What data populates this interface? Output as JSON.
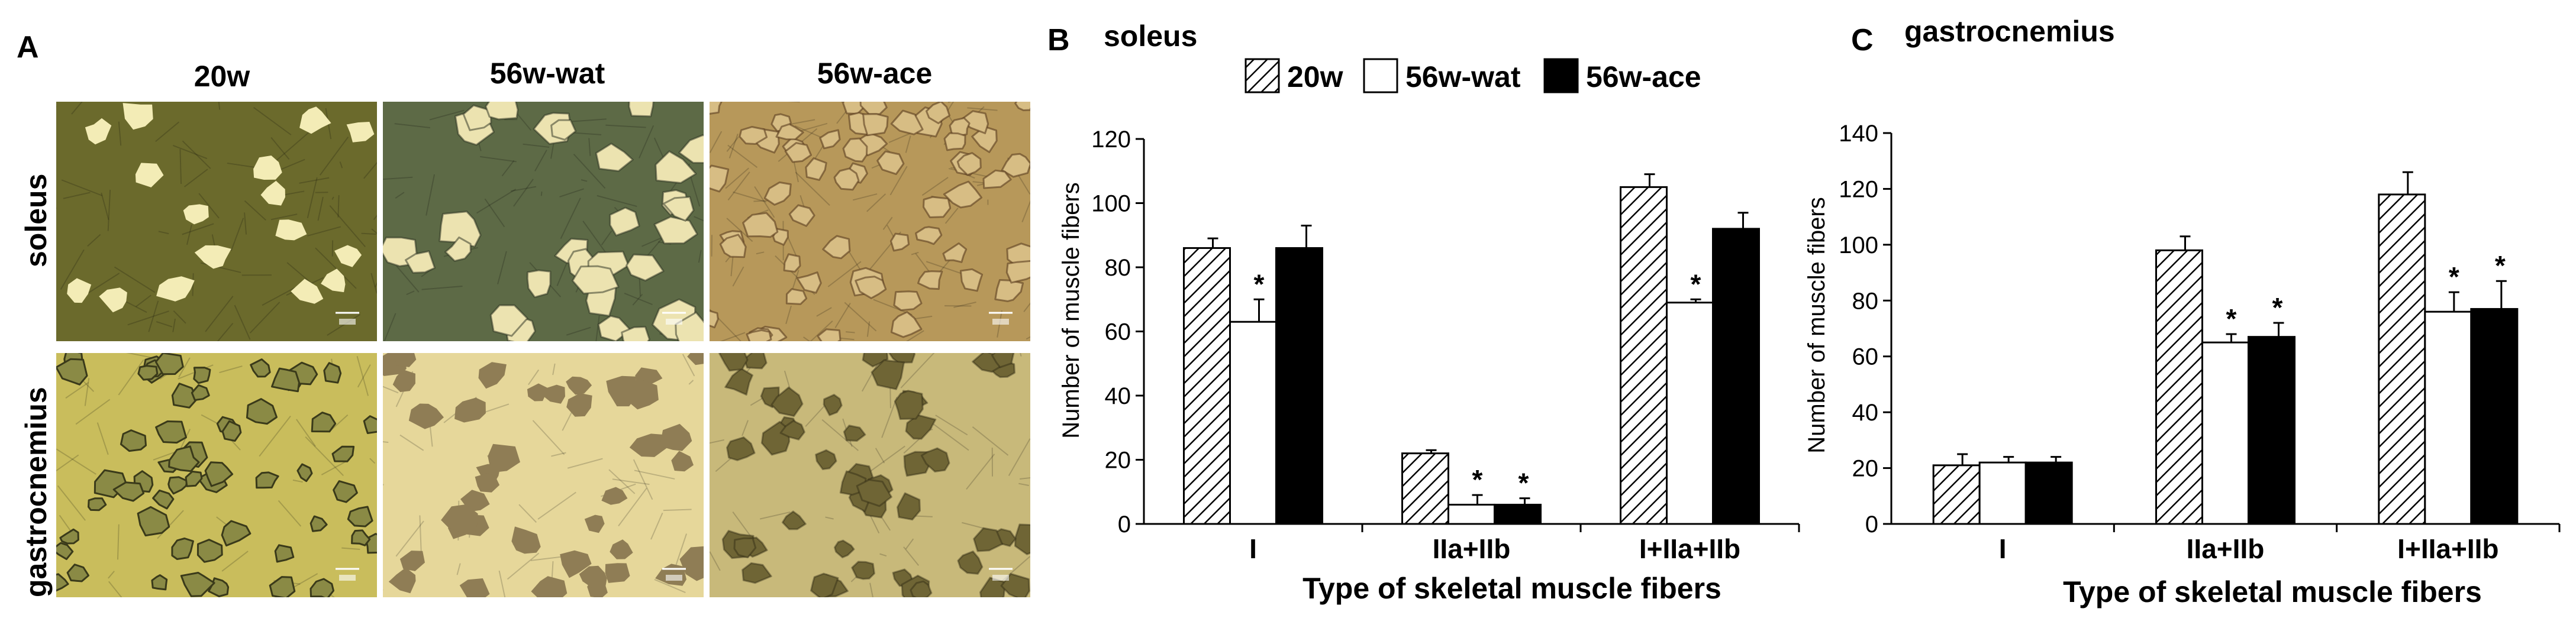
{
  "panel_a": {
    "letter": "A",
    "columns": [
      "20w",
      "56w-wat",
      "56w-ace"
    ],
    "rows": [
      "soleus",
      "gastrocnemius"
    ]
  },
  "legend": [
    "20w",
    "56w-wat",
    "56w-ace"
  ],
  "colors": {
    "series_20w_fill": "hatched",
    "series_56w_wat_fill": "#ffffff",
    "series_56w_ace_fill": "#000000",
    "soleus_20w_bg": "#6b6a2c",
    "soleus_20w_cell": "#f3ecb6",
    "soleus_wat_bg": "#5d6a46",
    "soleus_wat_cell": "#ece3b0",
    "soleus_ace_bg": "#b7985a",
    "soleus_ace_cell": "#d7bd84",
    "gastro_20w_bg": "#c9bd5c",
    "gastro_20w_cell": "#8a8a45",
    "gastro_wat_bg": "#e6d79a",
    "gastro_wat_cell": "#8f7d55",
    "gastro_ace_bg": "#c8b97a",
    "gastro_ace_cell": "#6f6535"
  },
  "chart_data": [
    {
      "panel": "B",
      "type": "bar",
      "title": "soleus",
      "xlabel": "Type of skeletal muscle fibers",
      "ylabel": "Number of muscle fibers",
      "ylim": [
        0,
        120
      ],
      "yticks": [
        "0",
        "20",
        "40",
        "60",
        "80",
        "100",
        "120"
      ],
      "categories": [
        "I",
        "IIa+IIb",
        "I+IIa+IIb"
      ],
      "series": [
        {
          "name": "20w",
          "values": [
            86,
            22,
            105
          ],
          "errors": [
            3,
            1,
            4
          ],
          "marks": [
            "",
            "",
            ""
          ]
        },
        {
          "name": "56w-wat",
          "values": [
            63,
            6,
            69
          ],
          "errors": [
            7,
            3,
            1
          ],
          "marks": [
            "*",
            "*",
            "*"
          ]
        },
        {
          "name": "56w-ace",
          "values": [
            86,
            6,
            92
          ],
          "errors": [
            7,
            2,
            5
          ],
          "marks": [
            "",
            "*",
            ""
          ]
        }
      ],
      "legend_position": "top"
    },
    {
      "panel": "C",
      "type": "bar",
      "title": "gastrocnemius",
      "xlabel": "Type of skeletal muscle fibers",
      "ylabel": "Number of muscle fibers",
      "ylim": [
        0,
        140
      ],
      "yticks": [
        "0",
        "20",
        "40",
        "60",
        "80",
        "100",
        "120",
        "140"
      ],
      "categories": [
        "I",
        "IIa+IIb",
        "I+IIa+IIb"
      ],
      "series": [
        {
          "name": "20w",
          "values": [
            21,
            98,
            118
          ],
          "errors": [
            4,
            5,
            8
          ],
          "marks": [
            "",
            "",
            ""
          ]
        },
        {
          "name": "56w-wat",
          "values": [
            22,
            65,
            76
          ],
          "errors": [
            2,
            3,
            7
          ],
          "marks": [
            "",
            "*",
            "*"
          ]
        },
        {
          "name": "56w-ace",
          "values": [
            22,
            67,
            77
          ],
          "errors": [
            2,
            5,
            10
          ],
          "marks": [
            "",
            "*",
            "*"
          ]
        }
      ]
    }
  ]
}
